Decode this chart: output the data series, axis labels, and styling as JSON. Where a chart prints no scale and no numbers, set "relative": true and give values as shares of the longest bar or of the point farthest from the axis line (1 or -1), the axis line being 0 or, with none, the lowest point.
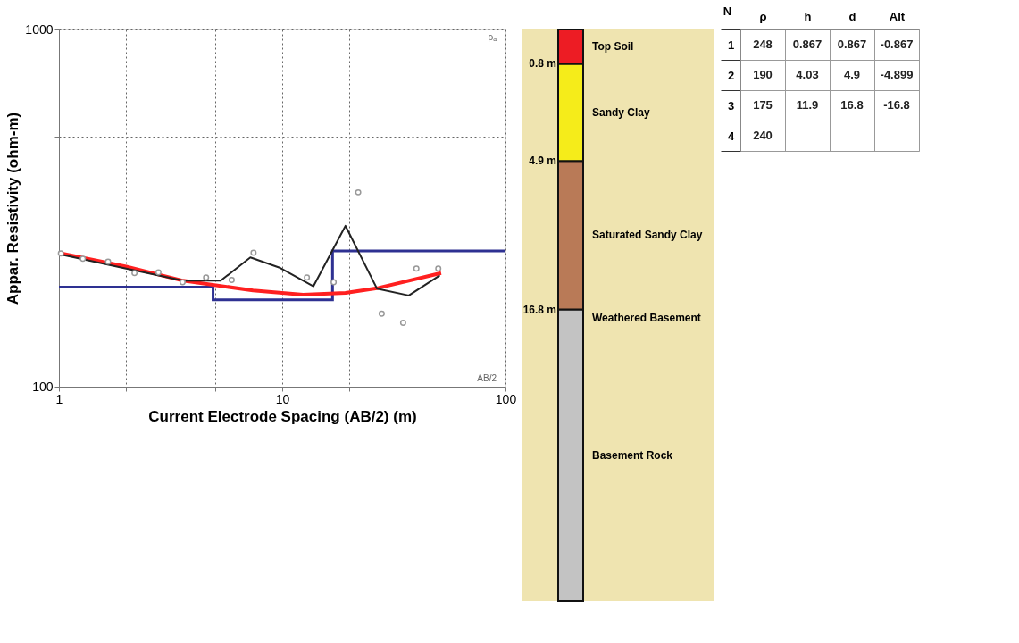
{
  "chart_data": [
    {
      "type": "line",
      "xlabel": "Current Electrode Spacing (AB/2) (m)",
      "ylabel": "Appar. Resistivity (ohm-m)",
      "log": "xy",
      "xlim": [
        1,
        100
      ],
      "ylim": [
        100,
        1000
      ],
      "xticks": [
        1,
        {
          "value": 2,
          "label": null
        },
        {
          "value": 5,
          "label": null
        },
        10,
        {
          "value": 20,
          "label": null
        },
        {
          "value": 50,
          "label": null
        },
        100
      ],
      "yticks": [
        100,
        {
          "value": 200,
          "label": null
        },
        {
          "value": 500,
          "label": null
        },
        1000
      ],
      "grid": true,
      "annotations": [
        "ρₐ",
        "AB/2"
      ],
      "series": [
        {
          "type": "step",
          "color": "#2e3192",
          "x": [
            1,
            4.9,
            16.8,
            100
          ],
          "values": [
            190,
            175,
            240,
            240
          ]
        },
        {
          "type": "line",
          "color": "#ff2020",
          "x": [
            1,
            2,
            3.6,
            7.4,
            12.4,
            19.2,
            27,
            51.5
          ],
          "values": [
            237,
            217,
            198,
            186,
            181,
            183,
            189,
            208
          ]
        },
        {
          "type": "line",
          "color": "#222222",
          "x": [
            1,
            2,
            3.6,
            5.3,
            7.2,
            9.8,
            13.8,
            19.2,
            26.6,
            36.9,
            50.8
          ],
          "values": [
            235,
            214,
            198,
            198,
            230,
            215,
            191,
            282,
            188,
            180,
            205
          ]
        },
        {
          "type": "scatter",
          "color": "#999999",
          "x": [
            1.02,
            1.28,
            1.66,
            2.18,
            2.79,
            3.58,
            4.56,
            5.94,
            7.44,
            12.9,
            17,
            21.9,
            27.9,
            34.8,
            39.9,
            50
          ],
          "values": [
            236,
            228,
            224,
            208,
            209,
            196,
            202,
            199,
            237,
            202,
            196,
            350,
            160,
            151,
            214,
            214
          ]
        }
      ]
    },
    {
      "type": "bar",
      "stacked": true,
      "relative": true,
      "categories": [
        null
      ],
      "annotations": [
        "0.8 m",
        "4.9 m",
        "16.8 m",
        "Weathered Basement"
      ],
      "series": [
        {
          "name": "Basement Rock",
          "color": "#c3c3c3",
          "values": [
            0.51
          ]
        },
        {
          "name": "Saturated Sandy Clay",
          "color": "#b97a57",
          "values": [
            0.26
          ]
        },
        {
          "name": "Sandy Clay",
          "color": "#f5ec1a",
          "values": [
            0.17
          ]
        },
        {
          "name": "Top Soil",
          "color": "#ed1c24",
          "values": [
            0.06
          ]
        }
      ]
    },
    {
      "type": "heatmap",
      "grid": true,
      "data_labels": true,
      "ylabel": "N",
      "categories": [
        "ρ",
        "h",
        "d",
        "Alt"
      ],
      "y_categories": [
        "1",
        "2",
        "3",
        "4"
      ],
      "cells": [
        [
          248,
          0.867,
          0.867,
          -0.867
        ],
        [
          190,
          4.03,
          4.9,
          -4.899
        ],
        [
          175,
          11.9,
          16.8,
          -16.8
        ],
        [
          240,
          null,
          null,
          null
        ]
      ]
    }
  ]
}
